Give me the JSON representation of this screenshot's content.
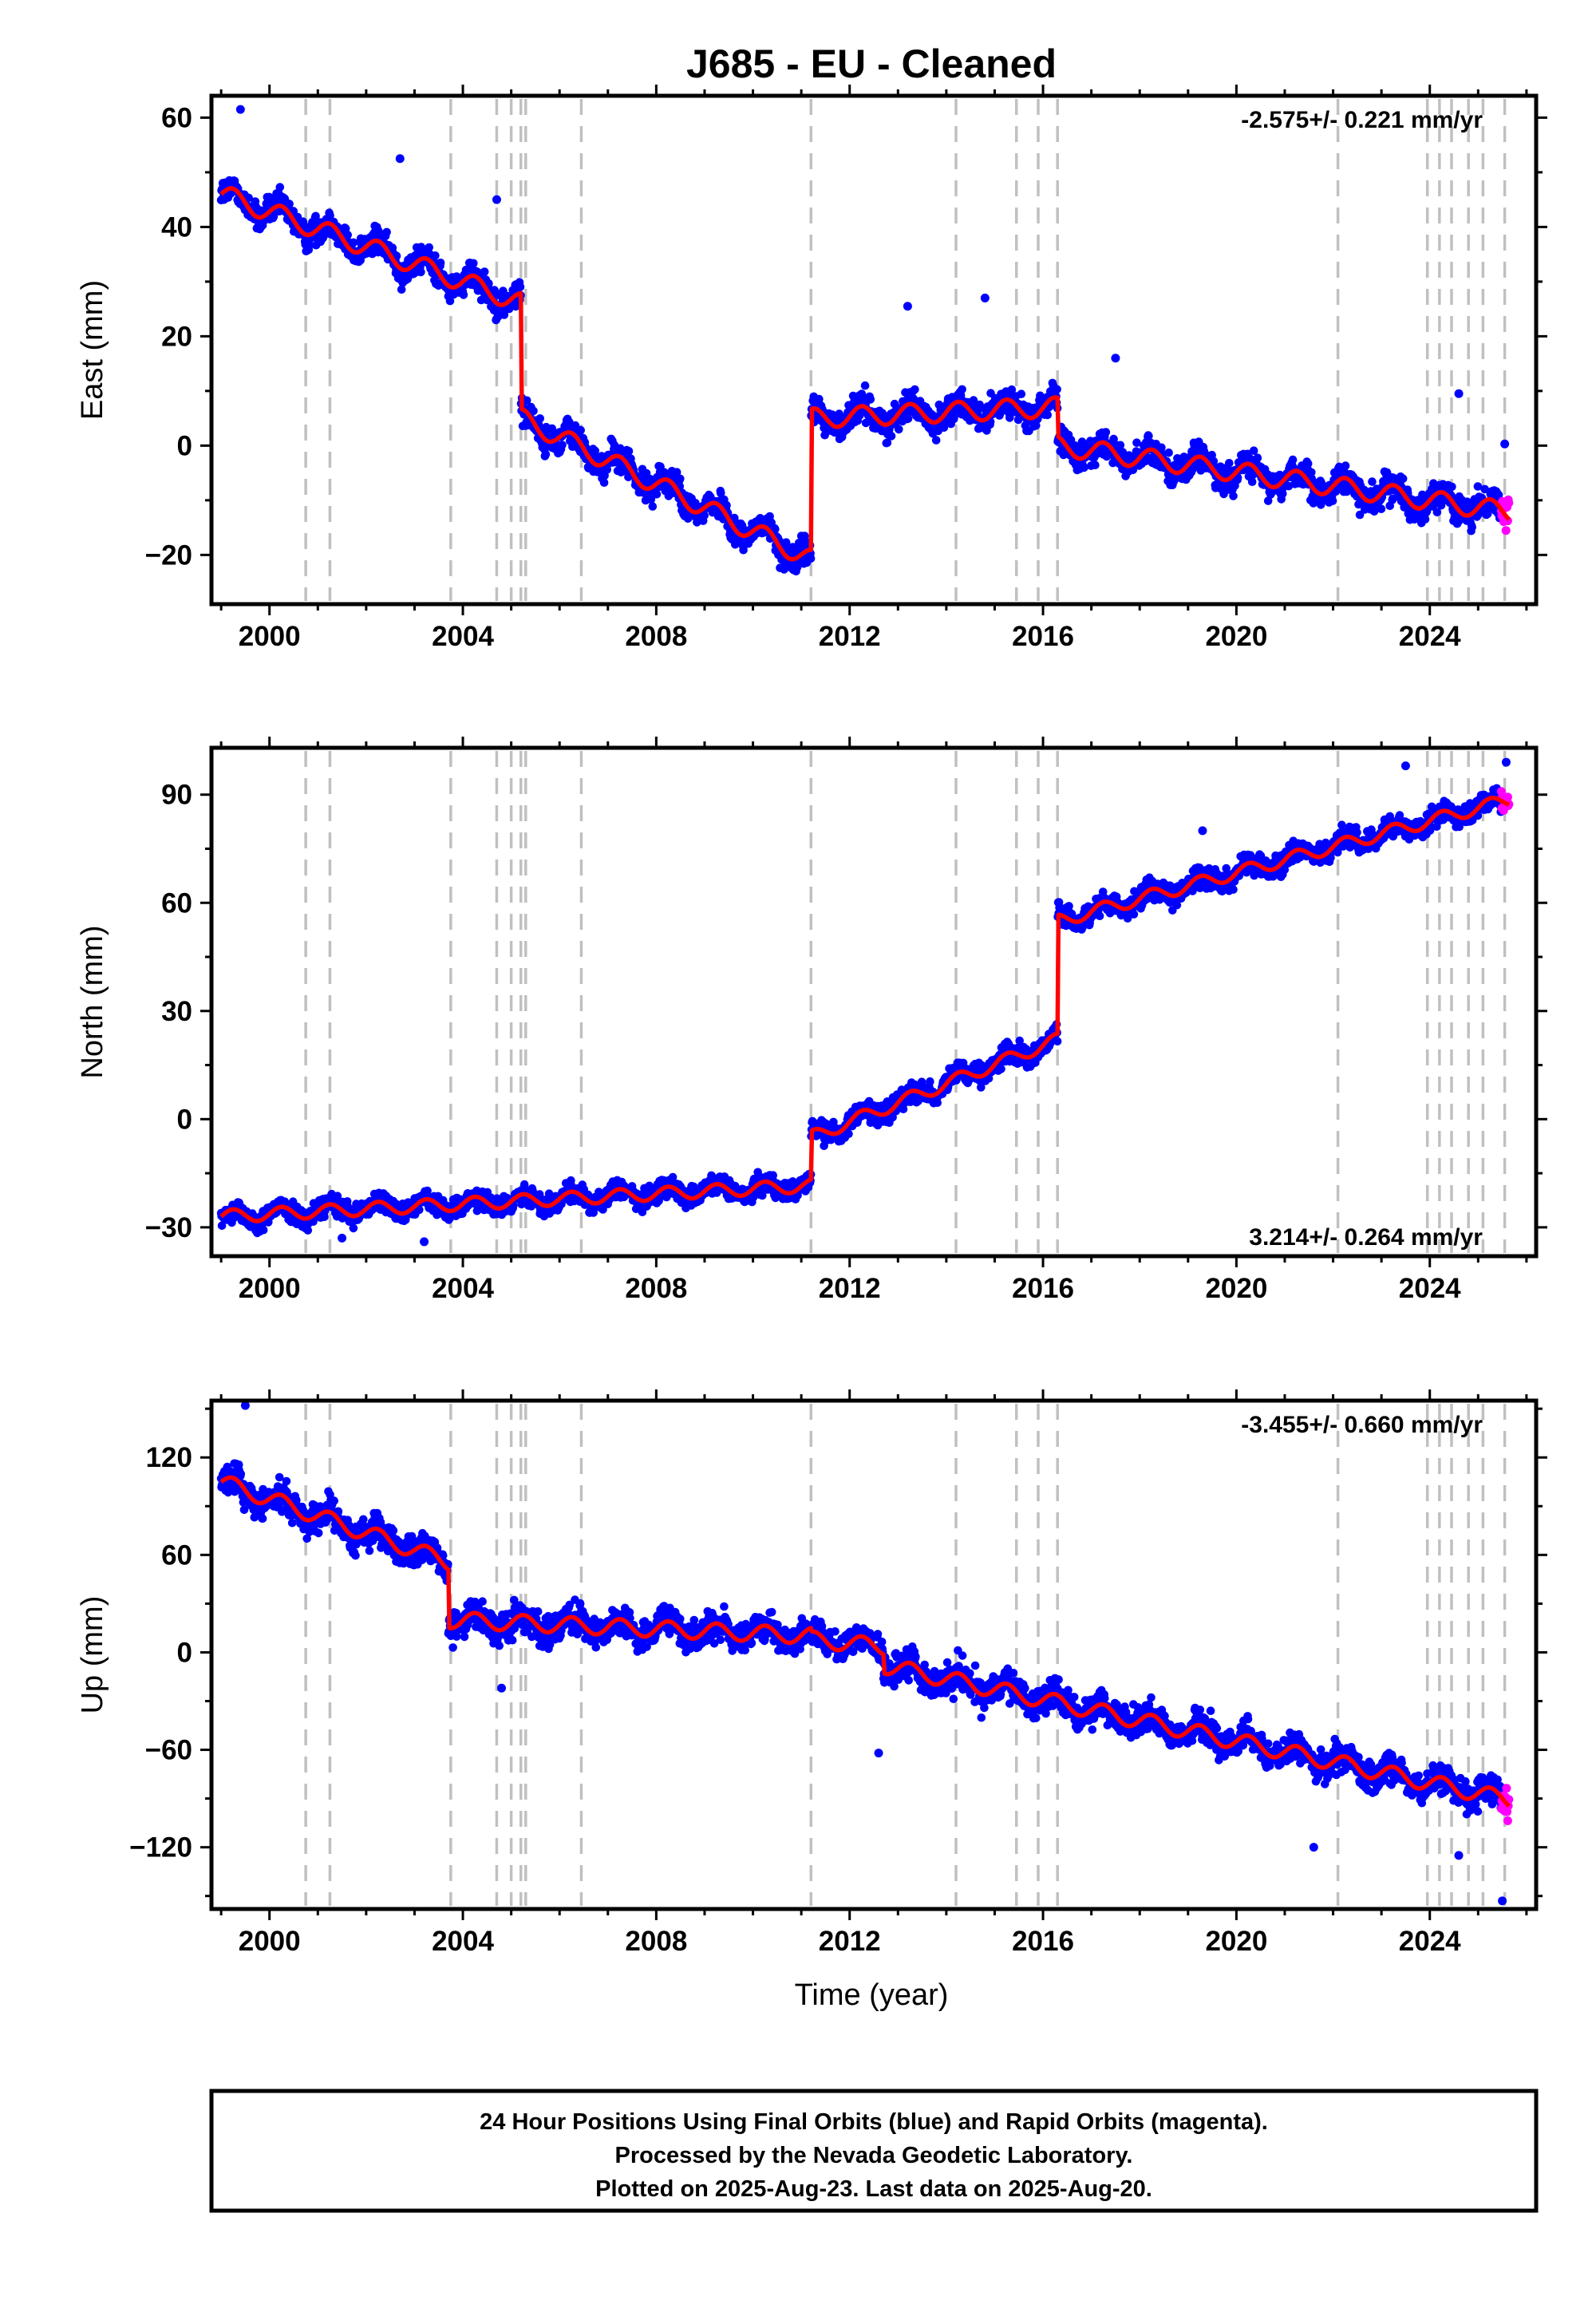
{
  "title": "J685  - EU - Cleaned",
  "x_label": "Time (year)",
  "footer": {
    "line1": "24 Hour Positions Using Final Orbits (blue) and Rapid Orbits (magenta).",
    "line2": "Processed by the Nevada Geodetic Laboratory.",
    "line3": "Plotted on 2025-Aug-23. Last data on 2025-Aug-20."
  },
  "colors": {
    "final_orbits": "#0000ff",
    "rapid_orbits": "#ff00ff",
    "model": "#ff0000",
    "event_lines": "#c0c0c0"
  },
  "chart_data": [
    {
      "type": "scatter",
      "name": "East",
      "ylabel": "East (mm)",
      "rate": "-2.575+/- 0.221 mm/yr",
      "xlim": [
        1998.8,
        2026.2
      ],
      "ylim": [
        -29,
        64
      ],
      "xticks": [
        2000,
        2004,
        2008,
        2012,
        2016,
        2020,
        2024
      ],
      "yticks": [
        -20,
        0,
        20,
        40,
        60
      ],
      "grid": false,
      "model": {
        "start": 1999.0,
        "end": 2025.64,
        "value_at_start": 46,
        "annual_amplitude": 1.8,
        "segments": [
          {
            "from": 1999.0,
            "to": 2005.2,
            "x0": 1999.0,
            "y0": 46,
            "slope": -3.2
          },
          {
            "from": 2005.2,
            "to": 2011.2,
            "x0": 2005.2,
            "y0": 5,
            "slope": -4.3
          },
          {
            "from": 2011.2,
            "to": 2016.3,
            "x0": 2011.2,
            "y0": 5,
            "slope": 0.4
          },
          {
            "from": 2016.3,
            "to": 2025.64,
            "x0": 2016.3,
            "y0": 0,
            "slope": -1.3
          }
        ]
      },
      "scatter_spread": 2.2,
      "outliers": [
        {
          "x": 1999.4,
          "y": 61.5
        },
        {
          "x": 2002.7,
          "y": 52.5
        },
        {
          "x": 2004.7,
          "y": 45
        },
        {
          "x": 2013.2,
          "y": 25.5
        },
        {
          "x": 2014.8,
          "y": 27
        },
        {
          "x": 2017.5,
          "y": 16
        },
        {
          "x": 2024.6,
          "y": 9.5
        },
        {
          "x": 2025.55,
          "y": 0.3
        }
      ]
    },
    {
      "type": "scatter",
      "name": "North",
      "ylabel": "North (mm)",
      "rate": "3.214+/- 0.264 mm/yr",
      "xlim": [
        1998.8,
        2026.2
      ],
      "ylim": [
        -38,
        103
      ],
      "xticks": [
        2000,
        2004,
        2008,
        2012,
        2016,
        2020,
        2024
      ],
      "yticks": [
        -30,
        0,
        30,
        60,
        90
      ],
      "grid": false,
      "model": {
        "start": 1999.0,
        "end": 2025.64,
        "value_at_start": -28,
        "annual_amplitude": 1.8,
        "segments": [
          {
            "from": 1999.0,
            "to": 2011.2,
            "x0": 1999.0,
            "y0": -27,
            "slope": 0.7
          },
          {
            "from": 2011.2,
            "to": 2016.3,
            "x0": 2011.2,
            "y0": -5,
            "slope": 5.3
          },
          {
            "from": 2016.3,
            "to": 2025.64,
            "x0": 2016.3,
            "y0": 55,
            "slope": 3.6
          }
        ]
      },
      "scatter_spread": 2.5,
      "outliers": [
        {
          "x": 2001.5,
          "y": -33
        },
        {
          "x": 2003.2,
          "y": -34
        },
        {
          "x": 2019.3,
          "y": 80
        },
        {
          "x": 2023.5,
          "y": 98
        },
        {
          "x": 2025.58,
          "y": 99
        }
      ]
    },
    {
      "type": "scatter",
      "name": "Up",
      "ylabel": "Up (mm)",
      "rate": "-3.455+/- 0.660 mm/yr",
      "xlim": [
        1998.8,
        2026.2
      ],
      "ylim": [
        -158,
        155
      ],
      "xticks": [
        2000,
        2004,
        2008,
        2012,
        2016,
        2020,
        2024
      ],
      "yticks": [
        -120,
        -60,
        0,
        60,
        120
      ],
      "grid": false,
      "model": {
        "start": 1999.0,
        "end": 2025.64,
        "value_at_start": 104,
        "annual_amplitude": 5,
        "segments": [
          {
            "from": 1999.0,
            "to": 2003.7,
            "x0": 1999.0,
            "y0": 105,
            "slope": -10.5
          },
          {
            "from": 2003.7,
            "to": 2011.2,
            "x0": 2003.7,
            "y0": 20,
            "slope": -1.3
          },
          {
            "from": 2011.2,
            "to": 2012.7,
            "x0": 2011.2,
            "y0": 8,
            "slope": -3
          },
          {
            "from": 2012.7,
            "to": 2025.64,
            "x0": 2012.7,
            "y0": -8,
            "slope": -6.4
          }
        ]
      },
      "scatter_spread": 8,
      "outliers": [
        {
          "x": 1999.5,
          "y": 152
        },
        {
          "x": 2004.8,
          "y": -22
        },
        {
          "x": 2012.6,
          "y": -62
        },
        {
          "x": 2021.6,
          "y": -120
        },
        {
          "x": 2024.6,
          "y": -125
        },
        {
          "x": 2025.5,
          "y": -153
        }
      ]
    }
  ],
  "event_lines": [
    2000.75,
    2001.25,
    2003.75,
    2004.7,
    2005.0,
    2005.2,
    2005.3,
    2006.45,
    2011.2,
    2014.2,
    2015.45,
    2015.9,
    2016.3,
    2022.1,
    2023.95,
    2024.2,
    2024.45,
    2024.8,
    2025.1,
    2025.55
  ],
  "final_orbit_end": 2025.48,
  "rapid_orbit_start": 2025.48
}
